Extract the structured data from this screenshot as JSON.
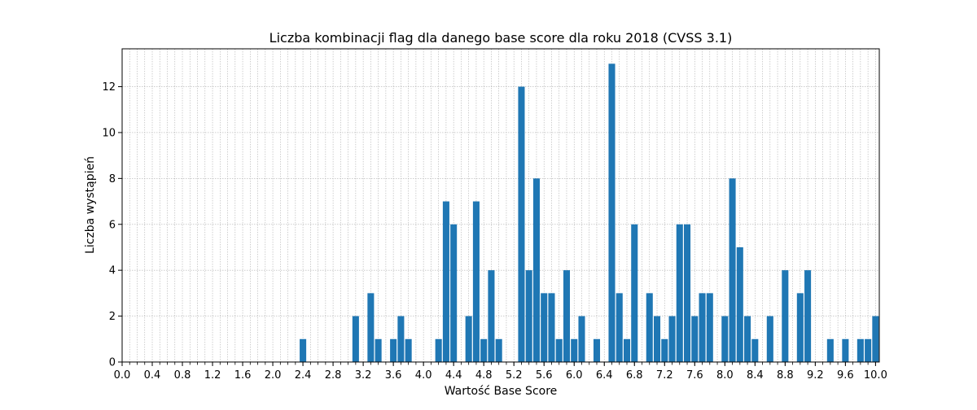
{
  "chart_data": {
    "type": "bar",
    "title": "Liczba kombinacji flag dla danego base score dla roku 2018 (CVSS 3.1)",
    "xlabel": "Wartość Base Score",
    "ylabel": "Liczba wystąpień",
    "xlim": [
      0.0,
      10.05
    ],
    "ylim": [
      0,
      13.65
    ],
    "grid": true,
    "bar_color": "#1f77b4",
    "x_ticks": [
      "0.0",
      "0.4",
      "0.8",
      "1.2",
      "1.6",
      "2.0",
      "2.4",
      "2.8",
      "3.2",
      "3.6",
      "4.0",
      "4.4",
      "4.8",
      "5.2",
      "5.6",
      "6.0",
      "6.4",
      "6.8",
      "7.2",
      "7.6",
      "8.0",
      "8.4",
      "8.8",
      "9.2",
      "9.6",
      "10.0"
    ],
    "y_ticks": [
      "0",
      "2",
      "4",
      "6",
      "8",
      "10",
      "12"
    ],
    "x": [
      2.4,
      3.1,
      3.3,
      3.4,
      3.6,
      3.7,
      3.8,
      4.2,
      4.3,
      4.4,
      4.6,
      4.7,
      4.8,
      4.9,
      5.0,
      5.3,
      5.4,
      5.5,
      5.6,
      5.7,
      5.8,
      5.9,
      6.0,
      6.1,
      6.3,
      6.5,
      6.6,
      6.7,
      6.8,
      7.0,
      7.1,
      7.2,
      7.3,
      7.4,
      7.5,
      7.6,
      7.7,
      7.8,
      8.0,
      8.1,
      8.2,
      8.3,
      8.4,
      8.6,
      8.8,
      9.0,
      9.1,
      9.4,
      9.6,
      9.8,
      9.9,
      10.0
    ],
    "values": [
      1,
      2,
      3,
      1,
      1,
      2,
      1,
      1,
      7,
      6,
      2,
      7,
      1,
      4,
      1,
      12,
      4,
      8,
      3,
      3,
      1,
      4,
      1,
      2,
      1,
      13,
      3,
      1,
      6,
      3,
      2,
      1,
      2,
      6,
      6,
      2,
      3,
      3,
      2,
      8,
      5,
      2,
      1,
      2,
      4,
      3,
      4,
      1,
      1,
      1,
      1,
      2
    ]
  }
}
